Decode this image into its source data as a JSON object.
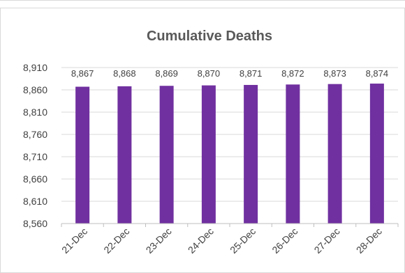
{
  "chart_data": {
    "type": "bar",
    "title": "Cumulative Deaths",
    "xlabel": "",
    "ylabel": "",
    "categories": [
      "21-Dec",
      "22-Dec",
      "23-Dec",
      "24-Dec",
      "25-Dec",
      "26-Dec",
      "27-Dec",
      "28-Dec"
    ],
    "values": [
      8867,
      8868,
      8869,
      8870,
      8871,
      8872,
      8873,
      8874
    ],
    "data_labels": [
      "8,867",
      "8,868",
      "8,869",
      "8,870",
      "8,871",
      "8,872",
      "8,873",
      "8,874"
    ],
    "ylim": [
      8560,
      8910
    ],
    "yticks": [
      8560,
      8610,
      8660,
      8710,
      8760,
      8810,
      8860,
      8910
    ],
    "ytick_labels": [
      "8,560",
      "8,610",
      "8,660",
      "8,710",
      "8,760",
      "8,810",
      "8,860",
      "8,910"
    ],
    "grid": true,
    "legend": "none",
    "bar_color": "#7030a0",
    "grid_color": "#d9d9d9",
    "axis_color": "#bfbfbf"
  }
}
